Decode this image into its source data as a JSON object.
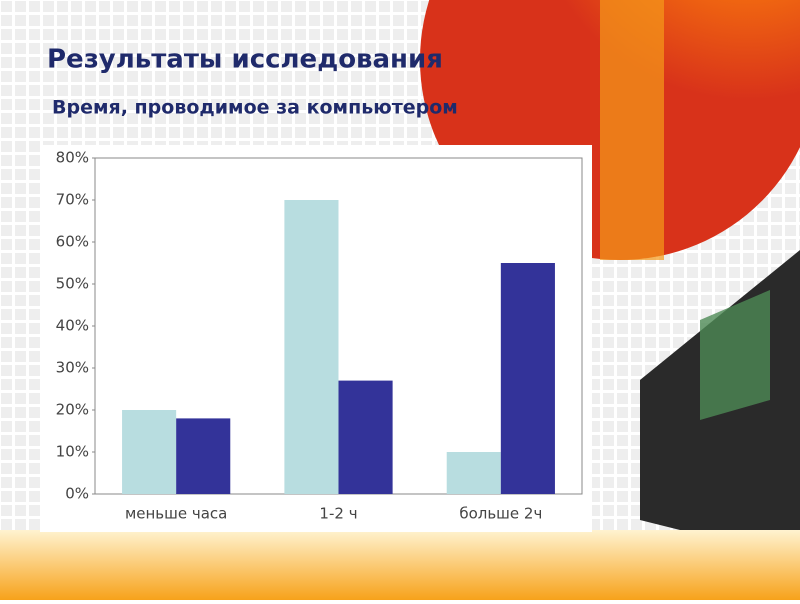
{
  "chart_data": {
    "type": "bar",
    "title": "Результаты исследования",
    "subtitle": "Время, проводимое за компьютером",
    "categories": [
      "меньше часа",
      "1-2 ч",
      "больше 2ч"
    ],
    "series": [
      {
        "color": "#b8dde0",
        "values": [
          20,
          70,
          10
        ]
      },
      {
        "color": "#333399",
        "values": [
          18,
          27,
          55
        ]
      }
    ],
    "ylim": [
      0,
      80
    ],
    "yticks": [
      {
        "value": 0,
        "label": "0%"
      },
      {
        "value": 10,
        "label": "10%"
      },
      {
        "value": 20,
        "label": "20%"
      },
      {
        "value": 30,
        "label": "30%"
      },
      {
        "value": 40,
        "label": "40%"
      },
      {
        "value": 50,
        "label": "50%"
      },
      {
        "value": 60,
        "label": "60%"
      },
      {
        "value": 70,
        "label": "70%"
      },
      {
        "value": 80,
        "label": "80%"
      }
    ],
    "grid": false
  }
}
